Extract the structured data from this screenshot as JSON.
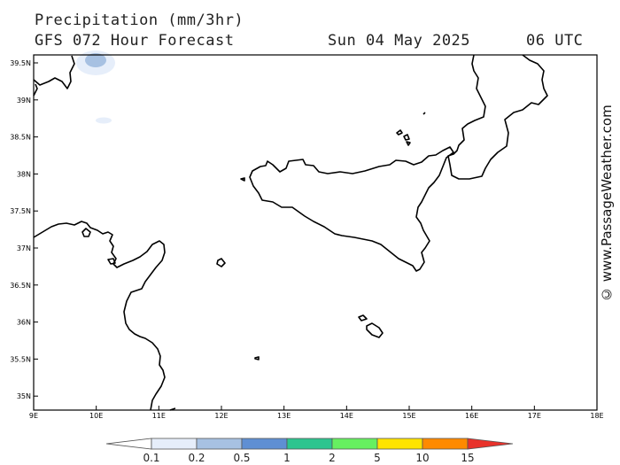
{
  "header": {
    "title": "Precipitation (mm/3hr)",
    "subtitle": "GFS 072 Hour Forecast",
    "forecast_date": "Sun 04 May 2025",
    "forecast_hour": "06 UTC"
  },
  "map": {
    "lon_labels": [
      "9E",
      "10E",
      "11E",
      "12E",
      "13E",
      "14E",
      "15E",
      "16E",
      "17E",
      "18E"
    ],
    "lat_labels": [
      "39.5N",
      "39N",
      "38.5N",
      "38N",
      "37.5N",
      "37N",
      "36.5N",
      "36N",
      "35.5N",
      "35N"
    ],
    "coast_color": "#000000",
    "regions": [
      "Sardinia",
      "Sicily",
      "Calabria",
      "Tunisia",
      "Malta",
      "Pantelleria",
      "Aeolian Islands",
      "Lampedusa"
    ]
  },
  "credit": "© www.PassageWeather.com",
  "legend": {
    "unit": "mm/3hr",
    "labels": [
      "0.1",
      "0.2",
      "0.5",
      "1",
      "2",
      "5",
      "10",
      "15"
    ],
    "colors": [
      "#ffffff",
      "#e6eefa",
      "#a7c1e2",
      "#5f8fd3",
      "#2dc58f",
      "#66f060",
      "#ffe400",
      "#ff8a00",
      "#e8322b"
    ]
  },
  "precip_areas": [
    {
      "lon": 9.95,
      "lat": 39.48,
      "category": "0.5-1"
    },
    {
      "lon": 10.1,
      "lat": 38.75,
      "category": "0.1-0.2"
    }
  ]
}
